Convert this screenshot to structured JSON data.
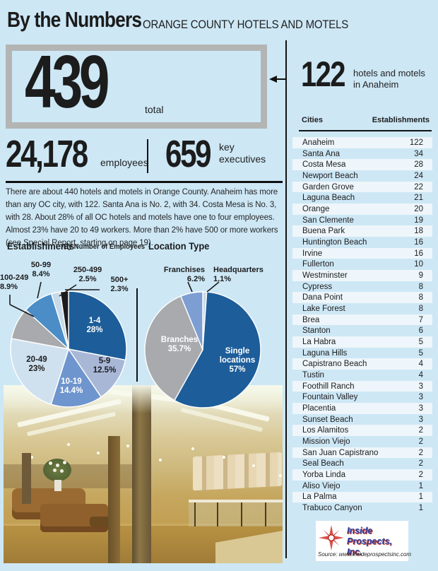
{
  "header": {
    "title": "By the Numbers",
    "subtitle": "ORANGE COUNTY HOTELS AND MOTELS"
  },
  "stats": {
    "total": {
      "value": "439",
      "label": "total"
    },
    "employees": {
      "value": "24,178",
      "label": "employees"
    },
    "executives": {
      "value": "659",
      "label_line1": "key",
      "label_line2": "executives"
    }
  },
  "intro_text": "There are about 440 hotels and motels in Orange County. Anaheim has more than any OC city, with 122. Santa Ana is No. 2, with 34. Costa Mesa is No. 3, with 28. About 28% of all OC hotels and motels have one to four employees. Almost 23% have 20 to 49 workers. More than 2% have 500 or more workers (see Special Report, starting on page 19).",
  "chart_data": [
    {
      "type": "pie",
      "title": "Establishments",
      "subtitle": "By Number of Employees",
      "legend_position": "labels-on-and-around-pie",
      "slices": [
        {
          "label": "1-4",
          "value": 28,
          "pct_label": "28%",
          "color": "#1d5d99"
        },
        {
          "label": "5-9",
          "value": 12.5,
          "pct_label": "12.5%",
          "color": "#a9b7d7"
        },
        {
          "label": "10-19",
          "value": 14.4,
          "pct_label": "14.4%",
          "color": "#6f95ce"
        },
        {
          "label": "20-49",
          "value": 23,
          "pct_label": "23%",
          "color": "#cfe1ef"
        },
        {
          "label": "100-249",
          "value": 8.9,
          "pct_label": "8.9%",
          "color": "#a8aaad"
        },
        {
          "label": "50-99",
          "value": 8.4,
          "pct_label": "8.4%",
          "color": "#4a8dc7"
        },
        {
          "label": "250-499",
          "value": 2.5,
          "pct_label": "2.5%",
          "color": "#c7dae9"
        },
        {
          "label": "500+",
          "value": 2.3,
          "pct_label": "2.3%",
          "color": "#1b1b1b"
        }
      ]
    },
    {
      "type": "pie",
      "title": "Location Type",
      "legend_position": "labels-on-and-around-pie",
      "slices": [
        {
          "label": "Headquarters",
          "value": 1.1,
          "pct_label": "1.1%",
          "color": "#c9d9ea"
        },
        {
          "label": "Single locations",
          "value": 57,
          "pct_label": "57%",
          "color": "#1d5d99"
        },
        {
          "label": "Branches",
          "value": 35.7,
          "pct_label": "35.7%",
          "color": "#a8aaad"
        },
        {
          "label": "Franchises",
          "value": 6.2,
          "pct_label": "6.2%",
          "color": "#7d9ed2"
        }
      ]
    },
    {
      "type": "table",
      "headers": [
        "Cities",
        "Establishments"
      ],
      "rows": [
        [
          "Anaheim",
          "122"
        ],
        [
          "Santa Ana",
          "34"
        ],
        [
          "Costa Mesa",
          "28"
        ],
        [
          "Newport Beach",
          "24"
        ],
        [
          "Garden Grove",
          "22"
        ],
        [
          "Laguna Beach",
          "21"
        ],
        [
          "Orange",
          "20"
        ],
        [
          "San Clemente",
          "19"
        ],
        [
          "Buena Park",
          "18"
        ],
        [
          "Huntington Beach",
          "16"
        ],
        [
          "Irvine",
          "16"
        ],
        [
          "Fullerton",
          "10"
        ],
        [
          "Westminster",
          "9"
        ],
        [
          "Cypress",
          "8"
        ],
        [
          "Dana Point",
          "8"
        ],
        [
          "Lake Forest",
          "8"
        ],
        [
          "Brea",
          "7"
        ],
        [
          "Stanton",
          "6"
        ],
        [
          "La Habra",
          "5"
        ],
        [
          "Laguna Hills",
          "5"
        ],
        [
          "Capistrano Beach",
          "4"
        ],
        [
          "Tustin",
          "4"
        ],
        [
          "Foothill Ranch",
          "3"
        ],
        [
          "Fountain Valley",
          "3"
        ],
        [
          "Placentia",
          "3"
        ],
        [
          "Sunset Beach",
          "3"
        ],
        [
          "Los Alamitos",
          "2"
        ],
        [
          "Mission Viejo",
          "2"
        ],
        [
          "San Juan Capistrano",
          "2"
        ],
        [
          "Seal Beach",
          "2"
        ],
        [
          "Yorba Linda",
          "2"
        ],
        [
          "Aliso Viejo",
          "1"
        ],
        [
          "La Palma",
          "1"
        ],
        [
          "Trabuco Canyon",
          "1"
        ]
      ]
    }
  ],
  "sidebar": {
    "anaheim": {
      "value": "122",
      "label_line1": "hotels and motels",
      "label_line2": "in Anaheim"
    },
    "table_headers": {
      "cities": "Cities",
      "establishments": "Establishments"
    }
  },
  "logo": {
    "name_line1": "Inside",
    "name_line2": "Prospects, Inc.",
    "source": "Source: www.insideprospectsinc.com"
  },
  "colors": {
    "background": "#cde7f5",
    "rule": "#111111",
    "box_border": "#b3b5b4",
    "table_alt_row": "#eef6fb"
  }
}
